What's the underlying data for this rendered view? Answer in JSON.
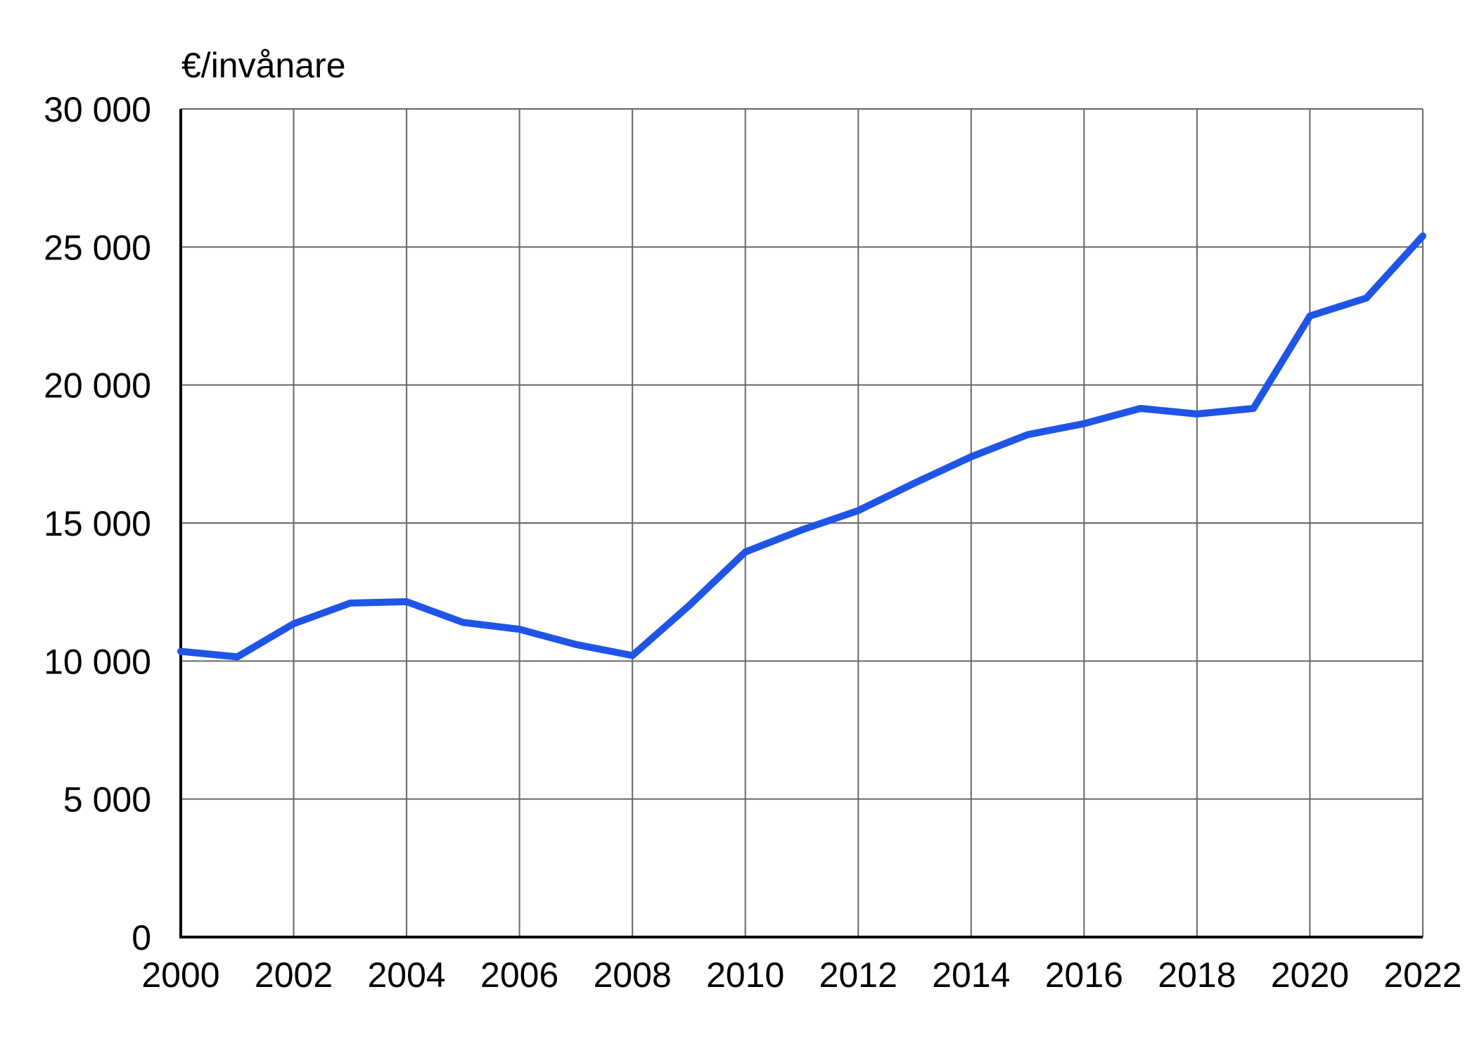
{
  "chart_data": {
    "type": "line",
    "title": "",
    "ylabel": "€/invånare",
    "xlabel": "",
    "x": [
      2000,
      2001,
      2002,
      2003,
      2004,
      2005,
      2006,
      2007,
      2008,
      2009,
      2010,
      2011,
      2012,
      2013,
      2014,
      2015,
      2016,
      2017,
      2018,
      2019,
      2020,
      2021,
      2022
    ],
    "series": [
      {
        "values": [
          10350,
          10150,
          11350,
          12100,
          12150,
          11400,
          11150,
          10600,
          10200,
          12000,
          13950,
          14750,
          15450,
          16450,
          17400,
          18200,
          18600,
          19150,
          18950,
          19150,
          22500,
          23150,
          25400
        ],
        "color": "#1f55e6"
      }
    ],
    "xlim": [
      2000,
      2022
    ],
    "ylim": [
      0,
      30000
    ],
    "x_ticks": [
      {
        "value": 2000,
        "label": "2000"
      },
      {
        "value": 2002,
        "label": "2002"
      },
      {
        "value": 2004,
        "label": "2004"
      },
      {
        "value": 2006,
        "label": "2006"
      },
      {
        "value": 2008,
        "label": "2008"
      },
      {
        "value": 2010,
        "label": "2010"
      },
      {
        "value": 2012,
        "label": "2012"
      },
      {
        "value": 2014,
        "label": "2014"
      },
      {
        "value": 2016,
        "label": "2016"
      },
      {
        "value": 2018,
        "label": "2018"
      },
      {
        "value": 2020,
        "label": "2020"
      },
      {
        "value": 2022,
        "label": "2022"
      }
    ],
    "y_ticks": [
      {
        "value": 0,
        "label": "0"
      },
      {
        "value": 5000,
        "label": "5 000"
      },
      {
        "value": 10000,
        "label": "10 000"
      },
      {
        "value": 15000,
        "label": "15 000"
      },
      {
        "value": 20000,
        "label": "20 000"
      },
      {
        "value": 25000,
        "label": "25 000"
      },
      {
        "value": 30000,
        "label": "30 000"
      }
    ],
    "grid": true,
    "legend": "none"
  }
}
